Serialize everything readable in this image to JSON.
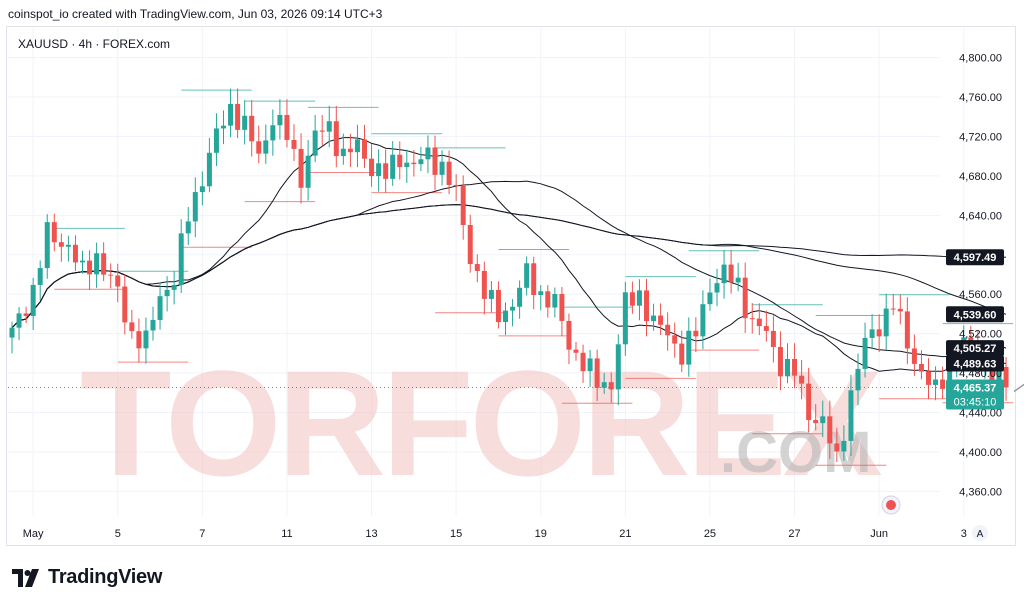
{
  "header": {
    "text": "coinspot_io created with TradingView.com, Jun 03, 2026 09:14 UTC+3"
  },
  "footer": {
    "brand": "TradingView"
  },
  "watermark": {
    "text_main": "TORFOREX",
    "text_sub": ".COM"
  },
  "colors": {
    "up": "#26a69a",
    "down": "#ef5350",
    "ma": "#131722",
    "grid": "#f0f3fa"
  },
  "chart_data": {
    "type": "candlestick",
    "symbol_label": "XAUUSD · 4h · FOREX.com",
    "y_ticks": [
      4360,
      4400,
      4440,
      4480,
      4520,
      4560,
      4600,
      4640,
      4680,
      4720,
      4760,
      4800
    ],
    "y_tick_labels": [
      "4,360.00",
      "4,400.00",
      "4,440.00",
      "4,480.00",
      "4,520.00",
      "4,560.00",
      "4,600.00",
      "4,640.00",
      "4,680.00",
      "4,720.00",
      "4,760.00",
      "4,800.00"
    ],
    "ylim": [
      4335,
      4830
    ],
    "x_labels": [
      {
        "label": "May",
        "bar": 3
      },
      {
        "label": "5",
        "bar": 15
      },
      {
        "label": "7",
        "bar": 27
      },
      {
        "label": "11",
        "bar": 39
      },
      {
        "label": "13",
        "bar": 51
      },
      {
        "label": "15",
        "bar": 63
      },
      {
        "label": "19",
        "bar": 75
      },
      {
        "label": "21",
        "bar": 87
      },
      {
        "label": "25",
        "bar": 99
      },
      {
        "label": "27",
        "bar": 111
      },
      {
        "label": "Jun",
        "bar": 123
      },
      {
        "label": "3",
        "bar": 135
      }
    ],
    "total_bars": 150,
    "price_markers": [
      {
        "value": 4597.49,
        "label": "4,597.49",
        "style": "dark"
      },
      {
        "value": 4539.6,
        "label": "4,539.60",
        "style": "dark"
      },
      {
        "value": 4505.27,
        "label": "4,505.27",
        "style": "dark"
      },
      {
        "value": 4489.63,
        "label": "4,489.63",
        "style": "dark"
      },
      {
        "value": 4465.37,
        "label": "4,465.37",
        "sub": "03:45:10",
        "style": "green"
      }
    ],
    "waypoints": [
      [
        0,
        4520
      ],
      [
        3,
        4565
      ],
      [
        5,
        4620
      ],
      [
        8,
        4610
      ],
      [
        10,
        4580
      ],
      [
        12,
        4600
      ],
      [
        15,
        4560
      ],
      [
        17,
        4520
      ],
      [
        19,
        4510
      ],
      [
        21,
        4560
      ],
      [
        23,
        4575
      ],
      [
        25,
        4640
      ],
      [
        27,
        4680
      ],
      [
        29,
        4720
      ],
      [
        31,
        4750
      ],
      [
        33,
        4730
      ],
      [
        35,
        4700
      ],
      [
        37,
        4740
      ],
      [
        39,
        4720
      ],
      [
        41,
        4680
      ],
      [
        43,
        4720
      ],
      [
        45,
        4730
      ],
      [
        47,
        4700
      ],
      [
        49,
        4710
      ],
      [
        51,
        4690
      ],
      [
        53,
        4680
      ],
      [
        55,
        4700
      ],
      [
        57,
        4690
      ],
      [
        59,
        4700
      ],
      [
        61,
        4690
      ],
      [
        63,
        4660
      ],
      [
        65,
        4600
      ],
      [
        67,
        4560
      ],
      [
        69,
        4540
      ],
      [
        71,
        4550
      ],
      [
        73,
        4580
      ],
      [
        75,
        4560
      ],
      [
        77,
        4550
      ],
      [
        79,
        4510
      ],
      [
        81,
        4490
      ],
      [
        83,
        4470
      ],
      [
        85,
        4470
      ],
      [
        87,
        4550
      ],
      [
        89,
        4560
      ],
      [
        91,
        4530
      ],
      [
        93,
        4520
      ],
      [
        95,
        4500
      ],
      [
        97,
        4520
      ],
      [
        99,
        4570
      ],
      [
        101,
        4580
      ],
      [
        103,
        4570
      ],
      [
        105,
        4530
      ],
      [
        107,
        4520
      ],
      [
        109,
        4490
      ],
      [
        111,
        4480
      ],
      [
        113,
        4440
      ],
      [
        115,
        4430
      ],
      [
        117,
        4390
      ],
      [
        119,
        4460
      ],
      [
        121,
        4510
      ],
      [
        123,
        4530
      ],
      [
        125,
        4550
      ],
      [
        127,
        4510
      ],
      [
        129,
        4480
      ],
      [
        131,
        4460
      ],
      [
        133,
        4490
      ],
      [
        135,
        4510
      ],
      [
        137,
        4500
      ],
      [
        139,
        4480
      ],
      [
        141,
        4465.37
      ]
    ],
    "last_price": 4465.37,
    "moving_averages": [
      {
        "period": 20,
        "end": 4505.27
      },
      {
        "period": 50,
        "end": 4489.63
      },
      {
        "period": 100,
        "end": 4539.6
      },
      {
        "period": 200,
        "end": 4597.49
      }
    ]
  }
}
